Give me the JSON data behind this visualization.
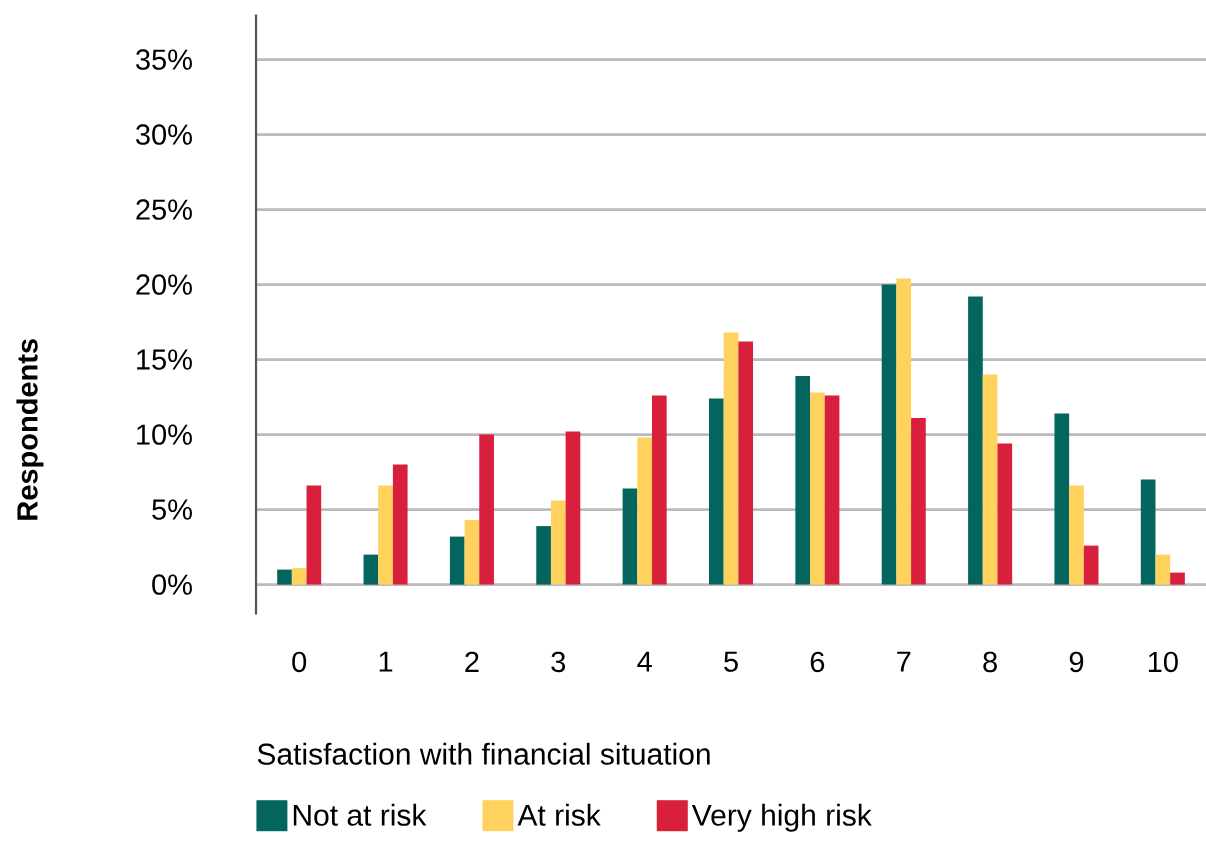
{
  "chart_data": {
    "type": "bar",
    "categories": [
      "0",
      "1",
      "2",
      "3",
      "4",
      "5",
      "6",
      "7",
      "8",
      "9",
      "10"
    ],
    "series": [
      {
        "name": "Not at risk",
        "color": "#04655f",
        "values": [
          1.0,
          2.0,
          3.2,
          3.9,
          6.4,
          12.4,
          13.9,
          20.0,
          19.2,
          11.4,
          7.0
        ]
      },
      {
        "name": "At risk",
        "color": "#ffd25e",
        "values": [
          1.1,
          6.6,
          4.3,
          5.6,
          9.8,
          16.8,
          12.8,
          20.4,
          14.0,
          6.6,
          2.0
        ]
      },
      {
        "name": "Very high risk",
        "color": "#d81f3c",
        "values": [
          6.6,
          8.0,
          10.0,
          10.2,
          12.6,
          16.2,
          12.6,
          11.1,
          9.4,
          2.6,
          0.8
        ]
      }
    ],
    "xlabel": "Satisfaction with financial situation",
    "ylabel": "Respondents",
    "ylim": [
      -2,
      38
    ],
    "yticks": [
      {
        "value": 0,
        "label": "0%"
      },
      {
        "value": 5,
        "label": "5%"
      },
      {
        "value": 10,
        "label": "10%"
      },
      {
        "value": 15,
        "label": "15%"
      },
      {
        "value": 20,
        "label": "20%"
      },
      {
        "value": 25,
        "label": "25%"
      },
      {
        "value": 30,
        "label": "30%"
      },
      {
        "value": 35,
        "label": "35%"
      }
    ],
    "grid": "y",
    "legend": "bottom"
  }
}
